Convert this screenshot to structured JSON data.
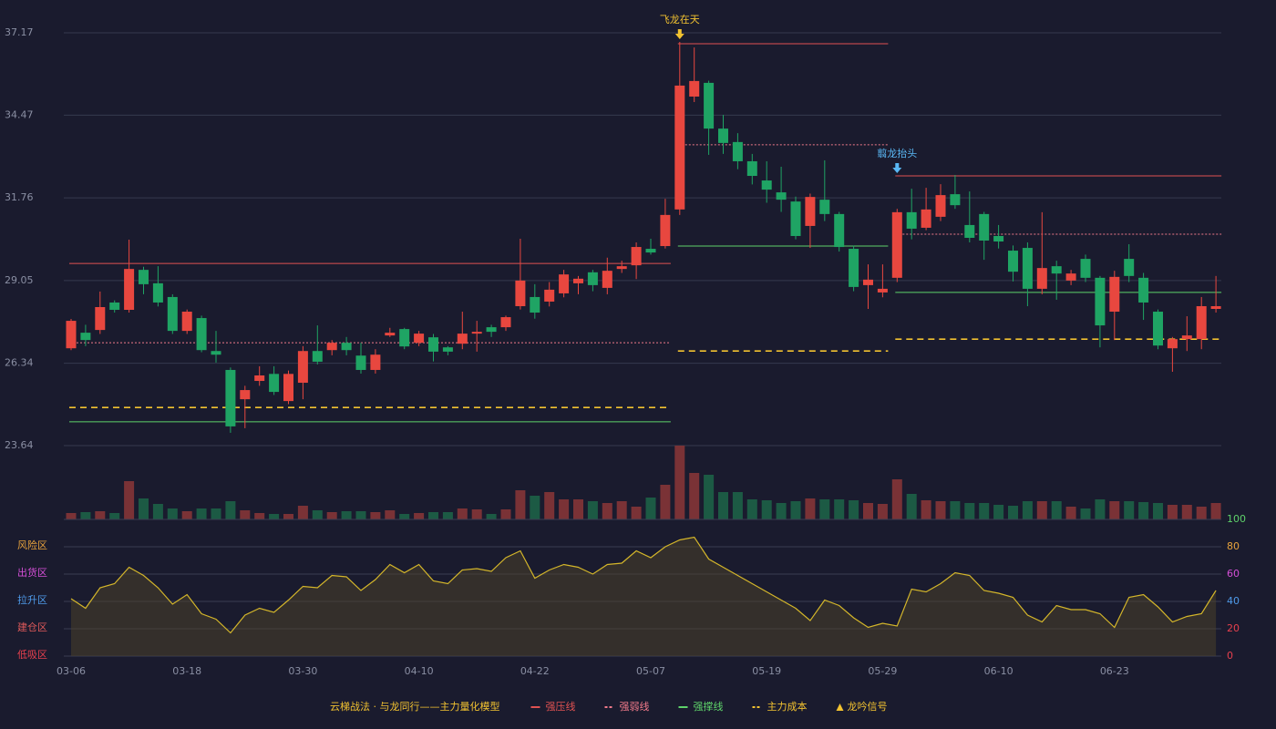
{
  "chart_data": [
    {
      "type": "candlestick",
      "categories": [
        "03-06",
        null,
        null,
        null,
        null,
        null,
        null,
        null,
        "03-18",
        null,
        null,
        null,
        null,
        null,
        null,
        null,
        "03-30",
        null,
        null,
        null,
        null,
        null,
        null,
        null,
        "04-10",
        null,
        null,
        null,
        null,
        null,
        null,
        null,
        "04-22",
        null,
        null,
        null,
        null,
        null,
        null,
        null,
        "05-07",
        null,
        null,
        null,
        null,
        null,
        null,
        null,
        "05-19",
        null,
        null,
        null,
        null,
        null,
        null,
        null,
        "05-29",
        null,
        null,
        null,
        null,
        null,
        null,
        null,
        "06-10",
        null,
        null,
        null,
        null,
        null,
        null,
        null,
        "06-23",
        null,
        null,
        null,
        null,
        null,
        null,
        null
      ],
      "open": [
        26.83,
        27.34,
        27.43,
        28.33,
        28.09,
        29.4,
        28.96,
        28.51,
        27.4,
        27.82,
        26.74,
        26.12,
        25.16,
        25.76,
        25.99,
        25.1,
        25.7,
        26.74,
        26.77,
        27.01,
        26.59,
        26.12,
        27.25,
        27.46,
        27.01,
        27.19,
        26.86,
        26.98,
        27.31,
        27.52,
        27.52,
        28.21,
        28.51,
        28.36,
        28.63,
        28.96,
        29.32,
        28.81,
        29.43,
        29.55,
        30.09,
        30.18,
        31.38,
        35.08,
        35.53,
        34.03,
        33.59,
        32.96,
        32.33,
        31.94,
        31.64,
        30.84,
        31.7,
        31.23,
        30.09,
        28.9,
        28.66,
        29.14,
        31.29,
        30.78,
        31.14,
        31.88,
        30.87,
        31.23,
        30.51,
        30.03,
        30.12,
        28.78,
        29.52,
        29.05,
        29.76,
        29.14,
        28.03,
        29.76,
        29.14,
        28.03,
        26.83,
        27.13,
        27.13,
        28.12
      ],
      "close": [
        27.73,
        27.1,
        28.18,
        28.09,
        29.43,
        28.93,
        28.33,
        27.4,
        28.03,
        26.77,
        26.62,
        24.27,
        25.46,
        25.94,
        25.4,
        25.99,
        26.74,
        26.39,
        27.01,
        26.77,
        26.12,
        26.62,
        27.34,
        26.89,
        27.31,
        26.72,
        26.72,
        27.31,
        27.37,
        27.37,
        27.85,
        29.05,
        28.0,
        28.75,
        29.25,
        29.11,
        28.9,
        29.37,
        29.52,
        30.15,
        29.97,
        31.2,
        35.44,
        35.59,
        34.03,
        33.56,
        32.96,
        32.48,
        32.03,
        31.7,
        30.51,
        31.79,
        31.23,
        30.15,
        28.84,
        29.08,
        28.78,
        31.29,
        30.75,
        31.38,
        31.85,
        31.52,
        30.45,
        30.36,
        30.33,
        29.34,
        28.78,
        29.46,
        29.28,
        29.28,
        29.14,
        27.58,
        29.17,
        29.2,
        28.33,
        26.92,
        27.13,
        27.25,
        28.21,
        28.21
      ],
      "high": [
        27.79,
        27.6,
        28.69,
        28.4,
        30.39,
        29.5,
        29.52,
        28.6,
        28.1,
        27.9,
        27.4,
        26.2,
        25.6,
        26.24,
        26.24,
        26.1,
        26.9,
        27.58,
        27.1,
        27.2,
        27.01,
        26.8,
        27.5,
        27.5,
        27.4,
        27.3,
        26.9,
        28.03,
        27.73,
        27.6,
        27.9,
        30.42,
        28.93,
        29.0,
        29.4,
        29.2,
        29.4,
        29.8,
        29.7,
        30.3,
        30.42,
        31.73,
        36.87,
        36.69,
        35.6,
        34.48,
        33.88,
        33.2,
        32.96,
        32.78,
        31.8,
        31.9,
        32.99,
        31.3,
        30.2,
        29.58,
        29.58,
        31.4,
        32.06,
        32.09,
        32.21,
        32.51,
        31.97,
        31.3,
        30.87,
        30.2,
        30.3,
        31.29,
        29.7,
        29.4,
        29.9,
        29.2,
        29.37,
        30.24,
        29.3,
        28.1,
        27.2,
        27.88,
        28.51,
        29.2
      ],
      "low": [
        26.77,
        26.9,
        27.3,
        28.0,
        28.0,
        28.6,
        28.2,
        27.3,
        27.3,
        26.7,
        26.36,
        24.06,
        24.21,
        25.6,
        25.3,
        25.0,
        25.16,
        26.3,
        26.6,
        26.6,
        26.0,
        26.0,
        27.2,
        26.8,
        26.9,
        26.4,
        26.6,
        26.8,
        26.72,
        27.2,
        27.4,
        28.1,
        27.8,
        28.2,
        28.5,
        28.6,
        28.7,
        28.6,
        29.3,
        29.1,
        29.9,
        30.1,
        31.2,
        34.9,
        33.17,
        33.2,
        32.7,
        32.2,
        31.6,
        31.3,
        30.4,
        30.12,
        31.0,
        30.0,
        28.7,
        28.12,
        28.5,
        29.0,
        30.4,
        30.7,
        31.0,
        31.4,
        30.3,
        29.73,
        30.1,
        29.02,
        28.21,
        28.6,
        28.42,
        28.9,
        29.0,
        26.86,
        27.1,
        29.0,
        27.76,
        26.8,
        26.06,
        26.74,
        26.8,
        28.0
      ],
      "up_color": "#e8473f",
      "down_color": "#1fa464",
      "ylim": [
        23.64,
        37.17
      ],
      "yticks": [
        37.17,
        34.47,
        31.76,
        29.05,
        26.34,
        23.64
      ],
      "grid": true,
      "levels": [
        {
          "name": "强压线",
          "color": "#e05252",
          "style": "solid",
          "values": [
            29.61,
            29.61,
            29.61,
            29.61,
            29.61,
            29.61,
            29.61,
            29.61,
            29.61,
            29.61,
            29.61,
            29.61,
            29.61,
            29.61,
            29.61,
            29.61,
            29.61,
            29.61,
            29.61,
            29.61,
            29.61,
            29.61,
            29.61,
            29.61,
            29.61,
            29.61,
            29.61,
            29.61,
            29.61,
            29.61,
            29.61,
            29.61,
            29.61,
            29.61,
            29.61,
            29.61,
            29.61,
            29.61,
            29.61,
            29.61,
            29.61,
            29.61,
            36.81,
            36.81,
            36.81,
            36.81,
            36.81,
            36.81,
            36.81,
            36.81,
            36.81,
            36.81,
            36.81,
            36.81,
            36.81,
            36.81,
            36.81,
            32.48,
            32.48,
            32.48,
            32.48,
            32.48,
            32.48,
            32.48,
            32.48,
            32.48,
            32.48,
            32.48,
            32.48,
            32.48,
            32.48,
            32.48,
            32.48,
            32.48,
            32.48,
            32.48,
            32.48,
            32.48,
            32.48,
            32.48
          ]
        },
        {
          "name": "强弱线",
          "color": "#f07a8a",
          "style": "dotted",
          "values": [
            27.01,
            27.01,
            27.01,
            27.01,
            27.01,
            27.01,
            27.01,
            27.01,
            27.01,
            27.01,
            27.01,
            27.01,
            27.01,
            27.01,
            27.01,
            27.01,
            27.01,
            27.01,
            27.01,
            27.01,
            27.01,
            27.01,
            27.01,
            27.01,
            27.01,
            27.01,
            27.01,
            27.01,
            27.01,
            27.01,
            27.01,
            27.01,
            27.01,
            27.01,
            27.01,
            27.01,
            27.01,
            27.01,
            27.01,
            27.01,
            27.01,
            27.01,
            33.5,
            33.5,
            33.5,
            33.5,
            33.5,
            33.5,
            33.5,
            33.5,
            33.5,
            33.5,
            33.5,
            33.5,
            33.5,
            33.5,
            33.5,
            30.57,
            30.57,
            30.57,
            30.57,
            30.57,
            30.57,
            30.57,
            30.57,
            30.57,
            30.57,
            30.57,
            30.57,
            30.57,
            30.57,
            30.57,
            30.57,
            30.57,
            30.57,
            30.57,
            30.57,
            30.57,
            30.57,
            30.57
          ]
        },
        {
          "name": "强撑线",
          "color": "#5ed26a",
          "style": "solid",
          "values": [
            24.42,
            24.42,
            24.42,
            24.42,
            24.42,
            24.42,
            24.42,
            24.42,
            24.42,
            24.42,
            24.42,
            24.42,
            24.42,
            24.42,
            24.42,
            24.42,
            24.42,
            24.42,
            24.42,
            24.42,
            24.42,
            24.42,
            24.42,
            24.42,
            24.42,
            24.42,
            24.42,
            24.42,
            24.42,
            24.42,
            24.42,
            24.42,
            24.42,
            24.42,
            24.42,
            24.42,
            24.42,
            24.42,
            24.42,
            24.42,
            24.42,
            24.42,
            30.18,
            30.18,
            30.18,
            30.18,
            30.18,
            30.18,
            30.18,
            30.18,
            30.18,
            30.18,
            30.18,
            30.18,
            30.18,
            30.18,
            30.18,
            28.66,
            28.66,
            28.66,
            28.66,
            28.66,
            28.66,
            28.66,
            28.66,
            28.66,
            28.66,
            28.66,
            28.66,
            28.66,
            28.66,
            28.66,
            28.66,
            28.66,
            28.66,
            28.66,
            28.66,
            28.66,
            28.66,
            28.66
          ]
        },
        {
          "name": "主力成本",
          "color": "#f2c230",
          "style": "dashed",
          "values": [
            24.89,
            24.89,
            24.89,
            24.89,
            24.89,
            24.89,
            24.89,
            24.89,
            24.89,
            24.89,
            24.89,
            24.89,
            24.89,
            24.89,
            24.89,
            24.89,
            24.89,
            24.89,
            24.89,
            24.89,
            24.89,
            24.89,
            24.89,
            24.89,
            24.89,
            24.89,
            24.89,
            24.89,
            24.89,
            24.89,
            24.89,
            24.89,
            24.89,
            24.89,
            24.89,
            24.89,
            24.89,
            24.89,
            24.89,
            24.89,
            24.89,
            24.89,
            26.74,
            26.74,
            26.74,
            26.74,
            26.74,
            26.74,
            26.74,
            26.74,
            26.74,
            26.74,
            26.74,
            26.74,
            26.74,
            26.74,
            26.74,
            27.13,
            27.13,
            27.13,
            27.13,
            27.13,
            27.13,
            27.13,
            27.13,
            27.13,
            27.13,
            27.13,
            27.13,
            27.13,
            27.13,
            27.13,
            27.13,
            27.13,
            27.13,
            27.13,
            27.13,
            27.13,
            27.13,
            27.13
          ]
        }
      ],
      "signal_name": "龙吟信号",
      "signal_color": "#f2c230",
      "signals": [
        null,
        null,
        null,
        null,
        null,
        null,
        null,
        null,
        null,
        null,
        null,
        null,
        null,
        null,
        null,
        null,
        null,
        null,
        null,
        null,
        null,
        null,
        null,
        null,
        null,
        null,
        null,
        null,
        null,
        null,
        null,
        null,
        null,
        null,
        null,
        null,
        null,
        null,
        null,
        null,
        null,
        null,
        {
          "label": "飞龙在天",
          "color": "#f2c230"
        },
        null,
        null,
        null,
        null,
        null,
        null,
        null,
        null,
        null,
        null,
        null,
        null,
        null,
        null,
        {
          "label": "翦龙抬头",
          "color": "#5ab8f5"
        },
        null,
        null,
        null,
        null,
        null,
        null,
        null,
        null,
        null,
        null,
        null,
        null,
        null,
        null,
        null,
        null,
        null,
        null,
        null,
        null,
        null,
        null
      ]
    },
    {
      "type": "bar",
      "values": [
        7,
        8,
        9,
        7,
        42,
        23,
        17,
        12,
        9,
        12,
        12,
        20,
        10,
        7,
        6,
        6,
        15,
        10,
        8,
        9,
        9,
        8,
        10,
        6,
        7,
        8,
        8,
        12,
        11,
        6,
        11,
        32,
        26,
        30,
        22,
        22,
        20,
        18,
        20,
        14,
        24,
        38,
        81,
        51,
        49,
        30,
        30,
        22,
        21,
        18,
        20,
        23,
        22,
        22,
        21,
        18,
        17,
        44,
        28,
        21,
        20,
        20,
        18,
        18,
        16,
        15,
        20,
        20,
        20,
        14,
        12,
        22,
        20,
        20,
        19,
        18,
        16,
        16,
        14,
        18
      ],
      "up_color": "#7a3236",
      "down_color": "#1c5a44"
    },
    {
      "type": "area",
      "values": [
        42,
        35,
        50,
        53,
        65,
        59,
        50,
        38,
        45,
        31,
        27,
        17,
        30,
        35,
        32,
        41,
        51,
        50,
        59,
        58,
        48,
        56,
        67,
        61,
        67,
        55,
        53,
        63,
        64,
        62,
        72,
        77,
        57,
        63,
        67,
        65,
        60,
        67,
        68,
        77,
        72,
        80,
        85,
        87,
        71,
        65,
        59,
        53,
        47,
        41,
        35,
        26,
        41,
        37,
        28,
        21,
        24,
        22,
        49,
        47,
        53,
        61,
        59,
        48,
        46,
        43,
        30,
        25,
        37,
        34,
        34,
        31,
        21,
        43,
        45,
        36,
        25,
        29,
        31,
        48
      ],
      "color": "#d4b62a",
      "fill": "#4a402a",
      "ylim": [
        0,
        100
      ],
      "yticks": [
        0,
        20,
        40,
        60,
        80,
        100
      ],
      "grid": true,
      "tick_colors": [
        "#e8404e",
        "#e8404e",
        "#4f9bea",
        "#d44fd6",
        "#e8a33c",
        "#5ed26a"
      ],
      "zones": [
        {
          "value": 80,
          "label": "风险区",
          "color": "#e8a33c"
        },
        {
          "value": 60,
          "label": "出货区",
          "color": "#d44fd6"
        },
        {
          "value": 40,
          "label": "拉升区",
          "color": "#4f9bea"
        },
        {
          "value": 20,
          "label": "建仓区",
          "color": "#e05a5a"
        },
        {
          "value": 0,
          "label": "低吸区",
          "color": "#e8404e"
        }
      ]
    }
  ],
  "legend": {
    "title": "云梯战法 · 与龙同行——主力量化模型",
    "position": "bottom"
  }
}
